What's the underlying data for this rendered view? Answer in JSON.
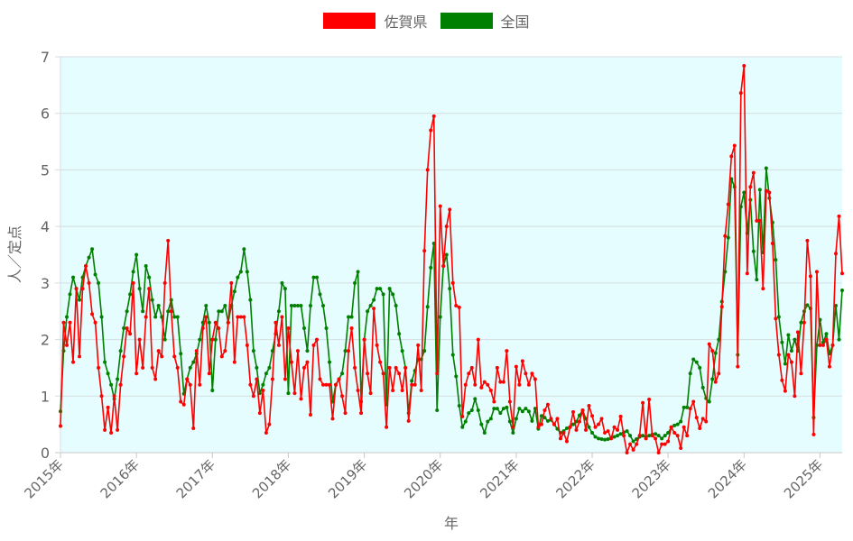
{
  "chart_data": {
    "type": "line",
    "title": "",
    "xlabel": "年",
    "ylabel": "人／定点",
    "ylim": [
      0,
      7
    ],
    "yticks": [
      "0",
      "1",
      "2",
      "3",
      "4",
      "5",
      "6",
      "7"
    ],
    "x_ticks": [
      "2015年",
      "2016年",
      "2017年",
      "2018年",
      "2019年",
      "2020年",
      "2021年",
      "2022年",
      "2023年",
      "2024年",
      "2025年"
    ],
    "x_interval": "semi-monthly",
    "grid": "horizontal",
    "legend_position": "top",
    "plot_background": "#e6fdff",
    "series": [
      {
        "name": "佐賀県",
        "color": "#ff0000",
        "values": [
          0.47,
          2.3,
          1.9,
          2.3,
          1.6,
          2.9,
          1.7,
          2.9,
          3.3,
          3.0,
          2.45,
          2.3,
          1.5,
          1.0,
          0.4,
          0.8,
          0.35,
          1.0,
          0.4,
          1.2,
          1.7,
          2.2,
          2.1,
          3.0,
          1.4,
          2.0,
          1.5,
          2.4,
          2.9,
          1.5,
          1.3,
          1.8,
          1.7,
          3.0,
          3.75,
          2.5,
          1.7,
          1.5,
          0.9,
          0.85,
          1.3,
          1.2,
          0.43,
          1.8,
          1.2,
          2.2,
          2.4,
          1.4,
          2.0,
          2.3,
          2.2,
          1.7,
          1.8,
          2.3,
          3.0,
          1.6,
          2.4,
          2.4,
          2.4,
          1.9,
          1.2,
          1.0,
          1.3,
          0.7,
          1.1,
          0.35,
          0.5,
          1.3,
          2.3,
          1.9,
          2.4,
          1.3,
          2.2,
          1.6,
          1.05,
          1.8,
          0.95,
          1.5,
          1.6,
          0.67,
          1.9,
          2.0,
          1.3,
          1.2,
          1.2,
          1.2,
          0.6,
          1.2,
          1.3,
          1.0,
          0.7,
          1.8,
          2.2,
          1.5,
          1.1,
          0.7,
          2.0,
          1.4,
          1.05,
          2.55,
          1.9,
          1.6,
          1.4,
          0.45,
          1.5,
          1.1,
          1.5,
          1.4,
          1.1,
          1.5,
          0.56,
          1.2,
          1.2,
          1.9,
          1.1,
          3.57,
          5.0,
          5.7,
          5.95,
          1.4,
          4.36,
          3.3,
          4.0,
          4.3,
          3.0,
          2.6,
          2.57,
          0.64,
          1.2,
          1.4,
          1.5,
          1.2,
          2.0,
          1.15,
          1.25,
          1.2,
          1.1,
          0.9,
          1.5,
          1.25,
          1.25,
          1.8,
          0.9,
          0.45,
          1.52,
          1.2,
          1.62,
          1.4,
          1.2,
          1.4,
          1.3,
          0.45,
          0.5,
          0.75,
          0.85,
          0.6,
          0.5,
          0.6,
          0.25,
          0.35,
          0.2,
          0.45,
          0.72,
          0.4,
          0.55,
          0.75,
          0.4,
          0.83,
          0.65,
          0.45,
          0.5,
          0.6,
          0.35,
          0.38,
          0.25,
          0.45,
          0.4,
          0.64,
          0.3,
          0.0,
          0.15,
          0.05,
          0.15,
          0.3,
          0.88,
          0.25,
          0.94,
          0.3,
          0.25,
          0.0,
          0.15,
          0.15,
          0.2,
          0.45,
          0.35,
          0.3,
          0.08,
          0.45,
          0.3,
          0.78,
          0.9,
          0.62,
          0.43,
          0.6,
          0.55,
          1.92,
          1.8,
          1.25,
          1.4,
          2.58,
          3.83,
          4.39,
          5.24,
          5.43,
          1.52,
          6.36,
          6.84,
          3.17,
          4.7,
          4.95,
          4.1,
          4.1,
          2.9,
          4.63,
          4.6,
          3.7,
          2.37,
          1.73,
          1.28,
          1.09,
          1.73,
          1.6,
          1.0,
          2.13,
          1.4,
          2.3,
          3.75,
          3.12,
          0.32,
          3.2,
          1.9,
          1.9,
          2.0,
          1.52,
          1.9,
          3.52,
          4.18,
          3.17
        ]
      },
      {
        "name": "全国",
        "color": "#008000",
        "values": [
          0.73,
          1.8,
          2.4,
          2.8,
          3.1,
          2.9,
          2.7,
          3.1,
          3.3,
          3.45,
          3.6,
          3.15,
          3.0,
          2.4,
          1.6,
          1.4,
          1.2,
          0.95,
          1.3,
          1.8,
          2.2,
          2.5,
          2.8,
          3.2,
          3.5,
          2.9,
          2.5,
          3.3,
          3.1,
          2.7,
          2.4,
          2.6,
          2.4,
          2.0,
          2.5,
          2.7,
          2.4,
          2.4,
          1.75,
          1.04,
          1.3,
          1.5,
          1.6,
          1.75,
          2.0,
          2.3,
          2.6,
          2.3,
          1.1,
          2.0,
          2.5,
          2.5,
          2.6,
          2.3,
          2.6,
          2.85,
          3.1,
          3.2,
          3.6,
          3.2,
          2.7,
          1.8,
          1.5,
          1.05,
          1.2,
          1.4,
          1.5,
          1.8,
          2.1,
          2.5,
          3.0,
          2.9,
          1.05,
          2.6,
          2.6,
          2.6,
          2.6,
          2.2,
          1.8,
          2.6,
          3.1,
          3.1,
          2.8,
          2.6,
          2.2,
          1.6,
          0.9,
          1.2,
          1.3,
          1.4,
          1.8,
          2.4,
          2.4,
          3.0,
          3.2,
          0.9,
          2.0,
          2.5,
          2.6,
          2.7,
          2.9,
          2.9,
          2.8,
          0.85,
          2.9,
          2.8,
          2.6,
          2.1,
          1.8,
          1.5,
          0.7,
          1.27,
          1.45,
          1.65,
          1.65,
          1.8,
          2.58,
          3.27,
          3.7,
          0.75,
          2.4,
          3.3,
          3.5,
          2.9,
          1.73,
          1.35,
          0.83,
          0.45,
          0.55,
          0.7,
          0.75,
          0.95,
          0.75,
          0.5,
          0.35,
          0.55,
          0.6,
          0.78,
          0.78,
          0.7,
          0.78,
          0.8,
          0.55,
          0.35,
          0.6,
          0.78,
          0.73,
          0.78,
          0.73,
          0.56,
          0.78,
          0.42,
          0.65,
          0.62,
          0.56,
          0.58,
          0.5,
          0.42,
          0.35,
          0.38,
          0.43,
          0.45,
          0.5,
          0.55,
          0.66,
          0.75,
          0.6,
          0.45,
          0.35,
          0.28,
          0.25,
          0.24,
          0.23,
          0.24,
          0.26,
          0.28,
          0.3,
          0.33,
          0.36,
          0.38,
          0.3,
          0.2,
          0.24,
          0.28,
          0.3,
          0.28,
          0.3,
          0.32,
          0.33,
          0.3,
          0.25,
          0.3,
          0.35,
          0.45,
          0.48,
          0.5,
          0.55,
          0.8,
          0.8,
          1.4,
          1.65,
          1.6,
          1.5,
          1.15,
          0.96,
          0.9,
          1.3,
          1.76,
          2.0,
          2.67,
          3.2,
          3.8,
          4.84,
          4.7,
          1.73,
          4.35,
          4.6,
          3.88,
          4.47,
          3.56,
          3.06,
          4.65,
          3.54,
          5.03,
          4.5,
          4.07,
          3.41,
          2.4,
          1.95,
          1.57,
          2.08,
          1.8,
          2.0,
          1.8,
          2.3,
          2.5,
          2.61,
          2.55,
          0.62,
          1.9,
          2.35,
          1.95,
          2.1,
          1.75,
          1.9,
          2.6,
          2.0,
          2.87
        ]
      }
    ]
  }
}
